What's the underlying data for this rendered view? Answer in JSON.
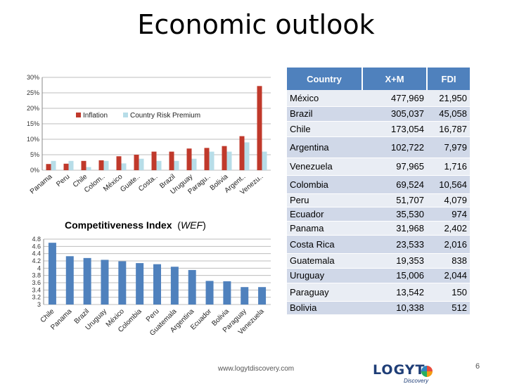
{
  "slide": {
    "title": "Economic outlook",
    "footer_url": "www.logytdiscovery.com",
    "page_number": "6",
    "logo_text": "LOGYT",
    "logo_sub": "Discovery"
  },
  "table": {
    "headers": [
      "Country",
      "X+M",
      "FDI"
    ],
    "rows": [
      {
        "country": "México",
        "xm": "477,969",
        "fdi": "21,950"
      },
      {
        "country": "Brazil",
        "xm": "305,037",
        "fdi": "45,058"
      },
      {
        "country": "Chile",
        "xm": "173,054",
        "fdi": "16,787"
      },
      {
        "country": "Argentina",
        "xm": "102,722",
        "fdi": "7,979"
      },
      {
        "country": "Venezuela",
        "xm": "97,965",
        "fdi": "1,716"
      },
      {
        "country": "Colombia",
        "xm": "69,524",
        "fdi": "10,564"
      },
      {
        "country": "Peru",
        "xm": "51,707",
        "fdi": "4,079"
      },
      {
        "country": "Ecuador",
        "xm": "35,530",
        "fdi": "974"
      },
      {
        "country": "Panama",
        "xm": "31,968",
        "fdi": "2,402"
      },
      {
        "country": "Costa Rica",
        "xm": "23,533",
        "fdi": "2,016"
      },
      {
        "country": "Guatemala",
        "xm": "19,353",
        "fdi": "838"
      },
      {
        "country": "Uruguay",
        "xm": "15,006",
        "fdi": "2,044"
      },
      {
        "country": "Paraguay",
        "xm": "13,542",
        "fdi": "150"
      },
      {
        "country": "Bolivia",
        "xm": "10,338",
        "fdi": "512"
      }
    ]
  },
  "chart_data": [
    {
      "type": "bar",
      "title": "",
      "categories": [
        "Panama",
        "Peru",
        "Chile",
        "Colom..",
        "México",
        "Guate..",
        "Costa..",
        "Brazil",
        "Uruguay",
        "Paragu..",
        "Bolivia",
        "Argent..",
        "Venezu.."
      ],
      "series": [
        {
          "name": "Inflation",
          "color": "#c0392b",
          "values": [
            2.0,
            2.1,
            3.0,
            3.2,
            4.5,
            5.0,
            6.0,
            6.0,
            7.0,
            7.2,
            7.8,
            11.0,
            27.2
          ]
        },
        {
          "name": "Country Risk Premium",
          "color": "#b7dde8",
          "values": [
            3.0,
            3.0,
            1.0,
            3.0,
            2.2,
            3.7,
            3.0,
            3.0,
            3.7,
            6.0,
            6.0,
            9.0,
            6.0
          ]
        }
      ],
      "ylim": [
        0,
        30
      ],
      "yticks": [
        "0%",
        "5%",
        "10%",
        "15%",
        "20%",
        "25%",
        "30%"
      ],
      "grid": true,
      "legend": "top-center"
    },
    {
      "type": "bar",
      "title": "Competitiveness Index",
      "title_source": "WEF",
      "categories": [
        "Chile",
        "Panama",
        "Brazil",
        "Uruguay",
        "México",
        "Colombia",
        "Peru",
        "Guatemala",
        "Argentina",
        "Ecuador",
        "Bolivia",
        "Paraguay",
        "Venezuela"
      ],
      "series": [
        {
          "color": "#4f81bd",
          "values": [
            4.7,
            4.33,
            4.28,
            4.23,
            4.19,
            4.14,
            4.11,
            4.04,
            3.95,
            3.65,
            3.64,
            3.48,
            3.48
          ]
        }
      ],
      "ylim": [
        3,
        4.8
      ],
      "yticks": [
        "3",
        "3.2",
        "3.4",
        "3.6",
        "3.8",
        "4",
        "4.2",
        "4.4",
        "4.6",
        "4.8"
      ],
      "grid": true
    }
  ]
}
